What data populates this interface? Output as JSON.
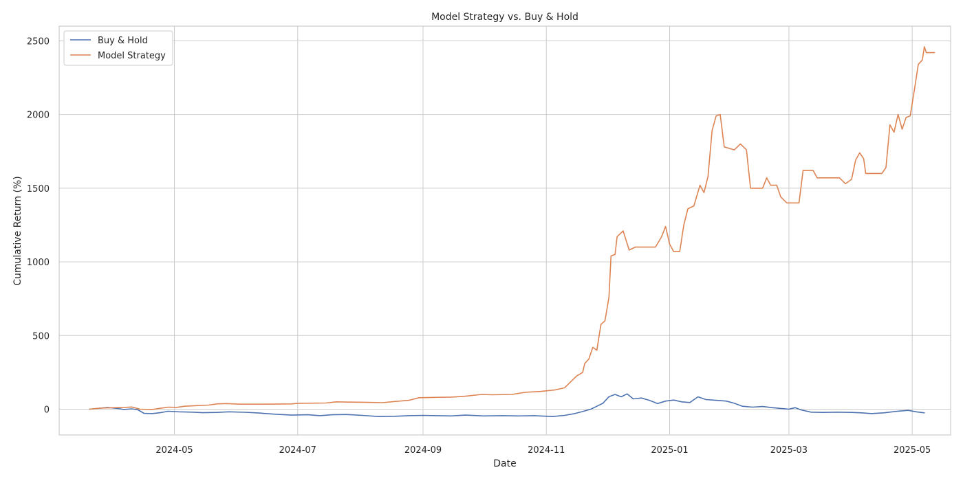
{
  "chart_data": {
    "type": "line",
    "title": "Model Strategy vs. Buy & Hold",
    "xlabel": "Date",
    "ylabel": "Cumulative Return (%)",
    "xlim": [
      "2024-03-05",
      "2025-05-20"
    ],
    "ylim": [
      -175,
      2600
    ],
    "x_ticks": [
      "2024-05-01",
      "2024-07-01",
      "2024-09-01",
      "2024-11-01",
      "2025-01-01",
      "2025-03-01",
      "2025-05-01"
    ],
    "x_tick_labels": [
      "2024-05",
      "2024-07",
      "2024-09",
      "2024-11",
      "2025-01",
      "2025-03",
      "2025-05"
    ],
    "y_ticks": [
      0,
      500,
      1000,
      1500,
      2000,
      2500
    ],
    "grid": true,
    "legend": "top-left",
    "colors": {
      "buy_hold": "#4c72b0",
      "model": "#dd8452"
    },
    "series": [
      {
        "name": "Buy & Hold",
        "color": "#4c72b0",
        "points": [
          [
            "2024-03-20",
            0
          ],
          [
            "2024-03-26",
            8
          ],
          [
            "2024-03-29",
            12
          ],
          [
            "2024-04-03",
            5
          ],
          [
            "2024-04-06",
            -2
          ],
          [
            "2024-04-10",
            2
          ],
          [
            "2024-04-13",
            -5
          ],
          [
            "2024-04-16",
            -28
          ],
          [
            "2024-04-20",
            -30
          ],
          [
            "2024-04-24",
            -24
          ],
          [
            "2024-04-28",
            -14
          ],
          [
            "2024-05-03",
            -18
          ],
          [
            "2024-05-10",
            -20
          ],
          [
            "2024-05-15",
            -24
          ],
          [
            "2024-05-22",
            -22
          ],
          [
            "2024-05-28",
            -18
          ],
          [
            "2024-06-05",
            -21
          ],
          [
            "2024-06-12",
            -26
          ],
          [
            "2024-06-20",
            -34
          ],
          [
            "2024-06-28",
            -40
          ],
          [
            "2024-07-06",
            -38
          ],
          [
            "2024-07-12",
            -44
          ],
          [
            "2024-07-18",
            -38
          ],
          [
            "2024-07-25",
            -36
          ],
          [
            "2024-08-02",
            -42
          ],
          [
            "2024-08-10",
            -50
          ],
          [
            "2024-08-18",
            -48
          ],
          [
            "2024-08-25",
            -44
          ],
          [
            "2024-09-01",
            -42
          ],
          [
            "2024-09-08",
            -44
          ],
          [
            "2024-09-15",
            -46
          ],
          [
            "2024-09-22",
            -40
          ],
          [
            "2024-10-01",
            -46
          ],
          [
            "2024-10-10",
            -44
          ],
          [
            "2024-10-18",
            -46
          ],
          [
            "2024-10-26",
            -44
          ],
          [
            "2024-11-04",
            -50
          ],
          [
            "2024-11-10",
            -42
          ],
          [
            "2024-11-15",
            -30
          ],
          [
            "2024-11-19",
            -16
          ],
          [
            "2024-11-23",
            0
          ],
          [
            "2024-11-26",
            20
          ],
          [
            "2024-11-29",
            40
          ],
          [
            "2024-12-02",
            85
          ],
          [
            "2024-12-05",
            100
          ],
          [
            "2024-12-08",
            84
          ],
          [
            "2024-12-11",
            104
          ],
          [
            "2024-12-14",
            70
          ],
          [
            "2024-12-18",
            76
          ],
          [
            "2024-12-22",
            60
          ],
          [
            "2024-12-26",
            38
          ],
          [
            "2024-12-30",
            55
          ],
          [
            "2025-01-03",
            62
          ],
          [
            "2025-01-07",
            50
          ],
          [
            "2025-01-11",
            45
          ],
          [
            "2025-01-15",
            84
          ],
          [
            "2025-01-19",
            65
          ],
          [
            "2025-01-24",
            60
          ],
          [
            "2025-01-29",
            55
          ],
          [
            "2025-02-02",
            40
          ],
          [
            "2025-02-06",
            20
          ],
          [
            "2025-02-11",
            14
          ],
          [
            "2025-02-16",
            18
          ],
          [
            "2025-02-21",
            10
          ],
          [
            "2025-02-25",
            5
          ],
          [
            "2025-03-01",
            0
          ],
          [
            "2025-03-04",
            10
          ],
          [
            "2025-03-07",
            -5
          ],
          [
            "2025-03-12",
            -20
          ],
          [
            "2025-03-18",
            -22
          ],
          [
            "2025-03-25",
            -20
          ],
          [
            "2025-04-01",
            -22
          ],
          [
            "2025-04-06",
            -25
          ],
          [
            "2025-04-11",
            -30
          ],
          [
            "2025-04-17",
            -25
          ],
          [
            "2025-04-23",
            -15
          ],
          [
            "2025-04-29",
            -8
          ],
          [
            "2025-05-03",
            -18
          ],
          [
            "2025-05-07",
            -25
          ]
        ]
      },
      {
        "name": "Model Strategy",
        "color": "#dd8452",
        "points": [
          [
            "2024-03-20",
            0
          ],
          [
            "2024-03-26",
            8
          ],
          [
            "2024-04-01",
            10
          ],
          [
            "2024-04-06",
            12
          ],
          [
            "2024-04-10",
            15
          ],
          [
            "2024-04-14",
            0
          ],
          [
            "2024-04-20",
            -2
          ],
          [
            "2024-04-24",
            6
          ],
          [
            "2024-04-28",
            14
          ],
          [
            "2024-05-02",
            12
          ],
          [
            "2024-05-06",
            20
          ],
          [
            "2024-05-12",
            24
          ],
          [
            "2024-05-18",
            28
          ],
          [
            "2024-05-22",
            36
          ],
          [
            "2024-05-27",
            38
          ],
          [
            "2024-06-02",
            34
          ],
          [
            "2024-06-15",
            34
          ],
          [
            "2024-06-28",
            36
          ],
          [
            "2024-07-01",
            40
          ],
          [
            "2024-07-15",
            42
          ],
          [
            "2024-07-20",
            50
          ],
          [
            "2024-07-28",
            48
          ],
          [
            "2024-08-05",
            46
          ],
          [
            "2024-08-12",
            44
          ],
          [
            "2024-08-18",
            52
          ],
          [
            "2024-08-25",
            60
          ],
          [
            "2024-08-30",
            78
          ],
          [
            "2024-09-07",
            80
          ],
          [
            "2024-09-15",
            82
          ],
          [
            "2024-09-22",
            88
          ],
          [
            "2024-09-30",
            100
          ],
          [
            "2024-10-05",
            98
          ],
          [
            "2024-10-15",
            100
          ],
          [
            "2024-10-22",
            115
          ],
          [
            "2024-10-29",
            120
          ],
          [
            "2024-11-05",
            130
          ],
          [
            "2024-11-10",
            145
          ],
          [
            "2024-11-13",
            185
          ],
          [
            "2024-11-16",
            225
          ],
          [
            "2024-11-19",
            250
          ],
          [
            "2024-11-20",
            310
          ],
          [
            "2024-11-22",
            340
          ],
          [
            "2024-11-24",
            420
          ],
          [
            "2024-11-26",
            400
          ],
          [
            "2024-11-28",
            575
          ],
          [
            "2024-11-30",
            600
          ],
          [
            "2024-12-01",
            680
          ],
          [
            "2024-12-02",
            760
          ],
          [
            "2024-12-03",
            1040
          ],
          [
            "2024-12-05",
            1050
          ],
          [
            "2024-12-06",
            1170
          ],
          [
            "2024-12-09",
            1210
          ],
          [
            "2024-12-12",
            1080
          ],
          [
            "2024-12-15",
            1100
          ],
          [
            "2024-12-25",
            1100
          ],
          [
            "2024-12-28",
            1170
          ],
          [
            "2024-12-30",
            1240
          ],
          [
            "2025-01-01",
            1120
          ],
          [
            "2025-01-03",
            1070
          ],
          [
            "2025-01-06",
            1070
          ],
          [
            "2025-01-08",
            1250
          ],
          [
            "2025-01-10",
            1360
          ],
          [
            "2025-01-13",
            1380
          ],
          [
            "2025-01-16",
            1520
          ],
          [
            "2025-01-18",
            1470
          ],
          [
            "2025-01-20",
            1580
          ],
          [
            "2025-01-22",
            1890
          ],
          [
            "2025-01-24",
            1990
          ],
          [
            "2025-01-26",
            2000
          ],
          [
            "2025-01-28",
            1780
          ],
          [
            "2025-02-02",
            1760
          ],
          [
            "2025-02-05",
            1800
          ],
          [
            "2025-02-08",
            1760
          ],
          [
            "2025-02-10",
            1500
          ],
          [
            "2025-02-13",
            1500
          ],
          [
            "2025-02-16",
            1500
          ],
          [
            "2025-02-18",
            1570
          ],
          [
            "2025-02-20",
            1520
          ],
          [
            "2025-02-23",
            1520
          ],
          [
            "2025-02-25",
            1440
          ],
          [
            "2025-02-28",
            1400
          ],
          [
            "2025-03-03",
            1400
          ],
          [
            "2025-03-06",
            1400
          ],
          [
            "2025-03-08",
            1620
          ],
          [
            "2025-03-13",
            1620
          ],
          [
            "2025-03-15",
            1570
          ],
          [
            "2025-03-20",
            1570
          ],
          [
            "2025-03-26",
            1570
          ],
          [
            "2025-03-29",
            1530
          ],
          [
            "2025-04-01",
            1560
          ],
          [
            "2025-04-03",
            1690
          ],
          [
            "2025-04-05",
            1740
          ],
          [
            "2025-04-07",
            1700
          ],
          [
            "2025-04-08",
            1600
          ],
          [
            "2025-04-12",
            1600
          ],
          [
            "2025-04-16",
            1600
          ],
          [
            "2025-04-18",
            1640
          ],
          [
            "2025-04-20",
            1930
          ],
          [
            "2025-04-22",
            1880
          ],
          [
            "2025-04-24",
            2000
          ],
          [
            "2025-04-26",
            1900
          ],
          [
            "2025-04-28",
            1980
          ],
          [
            "2025-04-30",
            1990
          ],
          [
            "2025-05-02",
            2160
          ],
          [
            "2025-05-04",
            2340
          ],
          [
            "2025-05-06",
            2370
          ],
          [
            "2025-05-07",
            2460
          ],
          [
            "2025-05-08",
            2420
          ],
          [
            "2025-05-12",
            2420
          ]
        ]
      }
    ]
  }
}
